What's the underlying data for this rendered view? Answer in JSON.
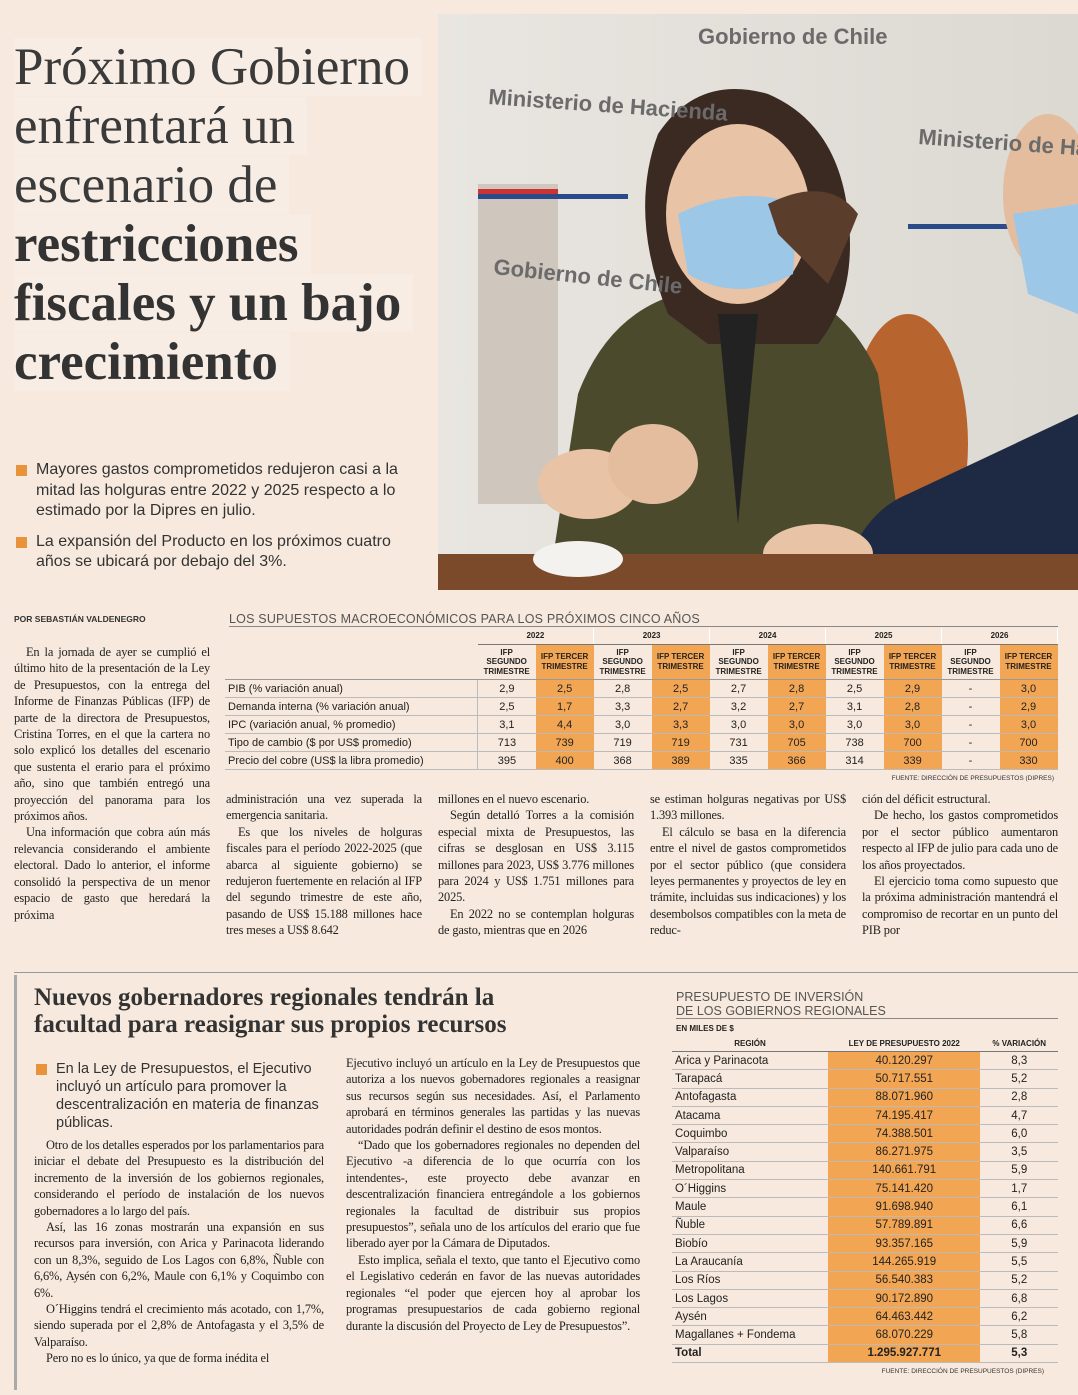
{
  "headline": {
    "light": [
      "Próximo Gobierno",
      "enfrentará un",
      "escenario de"
    ],
    "bold": [
      "restricciones",
      "fiscales y un bajo",
      "crecimiento"
    ]
  },
  "bullets": [
    "Mayores gastos comprometidos redujeron casi a la mitad las holguras entre 2022 y 2025 respecto a lo estimado por la Dipres en julio.",
    "La expansión del Producto en los próximos cuatro años se ubicará por debajo del 3%."
  ],
  "photo": {
    "signs": [
      "Gobierno de Chile",
      "Ministerio de Hacienda",
      "Gobierno de Chile",
      "Ministerio de Hacienda"
    ]
  },
  "byline": "POR SEBASTIÁN VALDENEGRO",
  "macro_table": {
    "title": "LOS SUPUESTOS MACROECONÓMICOS PARA LOS PRÓXIMOS CINCO AÑOS",
    "years": [
      "2022",
      "2023",
      "2024",
      "2025",
      "2026"
    ],
    "subheads": [
      "IFP SEGUNDO TRIMESTRE",
      "IFP TERCER TRIMESTRE"
    ],
    "rows": [
      {
        "label": "PIB (% variación anual)",
        "values": [
          "2,9",
          "2,5",
          "2,8",
          "2,5",
          "2,7",
          "2,8",
          "2,5",
          "2,9",
          "-",
          "3,0"
        ]
      },
      {
        "label": "Demanda interna (% variación anual)",
        "values": [
          "2,5",
          "1,7",
          "3,3",
          "2,7",
          "3,2",
          "2,7",
          "3,1",
          "2,8",
          "-",
          "2,9"
        ]
      },
      {
        "label": "IPC (variación anual, % promedio)",
        "values": [
          "3,1",
          "4,4",
          "3,0",
          "3,3",
          "3,0",
          "3,0",
          "3,0",
          "3,0",
          "-",
          "3,0"
        ]
      },
      {
        "label": "Tipo de cambio ($ por US$ promedio)",
        "values": [
          "713",
          "739",
          "719",
          "719",
          "731",
          "705",
          "738",
          "700",
          "-",
          "700"
        ]
      },
      {
        "label": "Precio del cobre (US$ la libra promedio)",
        "values": [
          "395",
          "400",
          "368",
          "389",
          "335",
          "366",
          "314",
          "339",
          "-",
          "330"
        ]
      }
    ],
    "source": "FUENTE: DIRECCIÓN DE PRESUPUESTOS (DIPRES)"
  },
  "article": {
    "columns": [
      [
        "En la jornada de ayer se cumplió el último hito de la presentación de la Ley de Presupuestos, con la entrega del Informe de Finanzas Públicas (IFP) de parte de la directora de Presupuestos, Cristina Torres, en el que la cartera no solo explicó los detalles del escenario que sustenta el erario para el próximo año, sino que también entregó una proyección del panorama para los próximos años.",
        "Una información que cobra aún más relevancia considerando el ambiente electoral. Dado lo anterior, el informe consolidó la perspectiva de un menor espacio de gasto que heredará la próxima"
      ],
      [
        "administración una vez superada la emergencia sanitaria.",
        "Es que los niveles de holguras fiscales para el período 2022-2025 (que abarca al siguiente gobierno) se redujeron fuertemente en relación al IFP del segundo trimestre de este año, pasando de US$ 15.188 millones hace tres meses a US$ 8.642"
      ],
      [
        "millones en el nuevo escenario.",
        "Según detalló Torres a la comisión especial mixta de Presupuestos, las cifras se desglosan en US$ 3.115 millones para 2023, US$ 3.776 millones para 2024 y US$ 1.751 millones para 2025.",
        "En 2022 no se contemplan holguras de gasto, mientras que en 2026"
      ],
      [
        "se estiman holguras negativas por US$ 1.393 millones.",
        "El cálculo se basa en la diferencia entre el nivel de gastos comprometidos por el sector público (que considera leyes permanentes y proyectos de ley en trámite, incluidas sus indicaciones) y los desembolsos compatibles con la meta de reduc-"
      ],
      [
        "ción del déficit estructural.",
        "De hecho, los gastos comprometidos por el sector público aumentaron respecto al IFP de julio para cada uno de los años proyectados.",
        "El ejercicio toma como supuesto que la próxima administración mantendrá el compromiso de recortar en un punto del PIB por"
      ]
    ]
  },
  "regional": {
    "headline": "Nuevos gobernadores regionales tendrán la facultad para reasignar sus propios recursos",
    "bullet": "En la Ley de Presupuestos, el Ejecutivo incluyó un artículo para promover la descentralización en materia de finanzas públicas.",
    "columns": [
      [
        "Otro de los detalles esperados por los parlamentarios para iniciar el debate del Presupuesto es la distribución del incremento de la inversión de los gobiernos regionales, considerando el período de instalación de los nuevos gobernadores a lo largo del país.",
        "Así, las 16 zonas mostrarán una expansión en sus recursos para inversión, con Arica y Parinacota liderando con un 8,3%, seguido de Los Lagos con 6,8%, Ñuble con 6,6%, Aysén con 6,2%, Maule con 6,1% y Coquimbo con 6%.",
        "O´Higgins tendrá el crecimiento más acotado, con 1,7%, siendo superada por el 2,8% de Antofagasta y el 3,5% de Valparaíso.",
        "Pero no es lo único, ya que de forma inédita el"
      ],
      [
        "Ejecutivo incluyó un artículo en la Ley de Presupuestos que autoriza a los nuevos gobernadores regionales a reasignar sus recursos según sus necesidades. Así, el Parlamento aprobará en términos generales las partidas y las nuevas autoridades podrán definir el destino de esos montos.",
        "“Dado que los gobernadores regionales no dependen del Ejecutivo -a diferencia de lo que ocurría con los intendentes-, este proyecto debe avanzar en descentralización financiera entregándole a los gobiernos regionales la facultad de distribuir sus propios presupuestos”, señala uno de los artículos del erario que fue liberado ayer por la Cámara de Diputados.",
        "Esto implica, señala el texto, que tanto el Ejecutivo como el Legislativo cederán en favor de las nuevas autoridades regionales “el poder que ejercen hoy al aprobar los programas presupuestarios de cada gobierno regional durante la discusión del Proyecto de Ley de Presupuestos”."
      ]
    ]
  },
  "regional_table": {
    "title": [
      "PRESUPUESTO DE INVERSIÓN",
      "DE LOS GOBIERNOS REGIONALES"
    ],
    "unit": "EN MILES DE $",
    "headers": [
      "REGIÓN",
      "LEY DE PRESUPUESTO 2022",
      "% VARIACIÓN"
    ],
    "rows": [
      [
        "Arica y Parinacota",
        "40.120.297",
        "8,3"
      ],
      [
        "Tarapacá",
        "50.717.551",
        "5,2"
      ],
      [
        "Antofagasta",
        "88.071.960",
        "2,8"
      ],
      [
        "Atacama",
        "74.195.417",
        "4,7"
      ],
      [
        "Coquimbo",
        "74.388.501",
        "6,0"
      ],
      [
        "Valparaíso",
        "86.271.975",
        "3,5"
      ],
      [
        "Metropolitana",
        "140.661.791",
        "5,9"
      ],
      [
        "O´Higgins",
        "75.141.420",
        "1,7"
      ],
      [
        "Maule",
        "91.698.940",
        "6,1"
      ],
      [
        "Ñuble",
        "57.789.891",
        "6,6"
      ],
      [
        "Biobío",
        "93.357.165",
        "5,9"
      ],
      [
        "La Araucanía",
        "144.265.919",
        "5,5"
      ],
      [
        "Los Ríos",
        "56.540.383",
        "5,2"
      ],
      [
        "Los Lagos",
        "90.172.890",
        "6,8"
      ],
      [
        "Aysén",
        "64.463.442",
        "6,2"
      ],
      [
        "Magallanes + Fondema",
        "68.070.229",
        "5,8"
      ],
      [
        "Total",
        "1.295.927.771",
        "5,3"
      ]
    ],
    "source": "FUENTE: DIRECCIÓN DE PRESUPUESTOS (DIPRES)"
  }
}
